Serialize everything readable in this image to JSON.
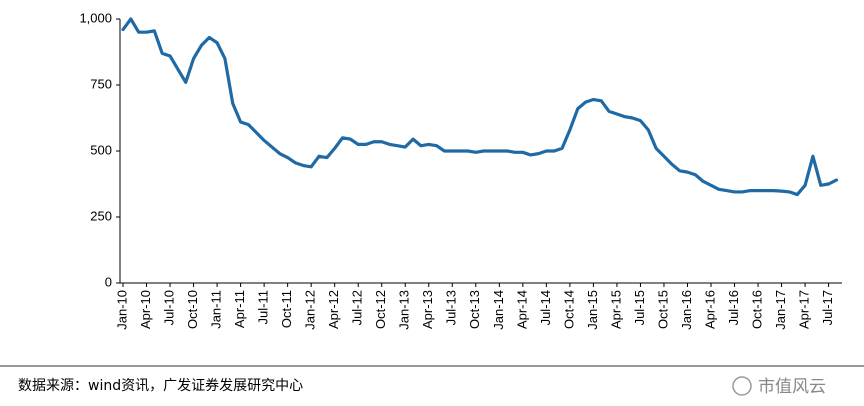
{
  "chart_data": {
    "type": "line",
    "categories": [
      "Jan-10",
      null,
      null,
      "Apr-10",
      null,
      null,
      "Jul-10",
      null,
      null,
      "Oct-10",
      null,
      null,
      "Jan-11",
      null,
      null,
      "Apr-11",
      null,
      null,
      "Jul-11",
      null,
      null,
      "Oct-11",
      null,
      null,
      "Jan-12",
      null,
      null,
      "Apr-12",
      null,
      null,
      "Jul-12",
      null,
      null,
      "Oct-12",
      null,
      null,
      "Jan-13",
      null,
      null,
      "Apr-13",
      null,
      null,
      "Jul-13",
      null,
      null,
      "Oct-13",
      null,
      null,
      "Jan-14",
      null,
      null,
      "Apr-14",
      null,
      null,
      "Jul-14",
      null,
      null,
      "Oct-14",
      null,
      null,
      "Jan-15",
      null,
      null,
      "Apr-15",
      null,
      null,
      "Jul-15",
      null,
      null,
      "Oct-15",
      null,
      null,
      "Jan-16",
      null,
      null,
      "Apr-16",
      null,
      null,
      "Jul-16",
      null,
      null,
      "Oct-16",
      null,
      null,
      "Jan-17",
      null,
      null,
      "Apr-17",
      null,
      null,
      "Jul-17",
      null
    ],
    "series": [
      {
        "color": "#1f6aa5",
        "values": [
          960,
          1000,
          950,
          950,
          955,
          870,
          860,
          810,
          760,
          850,
          900,
          930,
          910,
          850,
          680,
          610,
          600,
          570,
          540,
          515,
          490,
          475,
          455,
          445,
          440,
          480,
          475,
          510,
          550,
          545,
          525,
          525,
          535,
          535,
          525,
          520,
          515,
          545,
          520,
          525,
          520,
          500,
          500,
          500,
          500,
          495,
          500,
          500,
          500,
          500,
          495,
          495,
          485,
          490,
          500,
          500,
          510,
          580,
          660,
          685,
          695,
          690,
          650,
          640,
          630,
          625,
          615,
          580,
          510,
          480,
          450,
          425,
          420,
          410,
          385,
          370,
          355,
          350,
          345,
          345,
          350,
          350,
          350,
          350,
          348,
          345,
          335,
          370,
          480,
          370,
          375,
          390
        ]
      }
    ],
    "ylim": [
      0,
      1000
    ],
    "yticks": [
      0,
      250,
      500,
      750,
      {
        "value": 1000,
        "label": "1,000"
      }
    ],
    "source": "数据来源：wind资讯，广发证券发展研究中心",
    "watermark": "市值风云"
  }
}
